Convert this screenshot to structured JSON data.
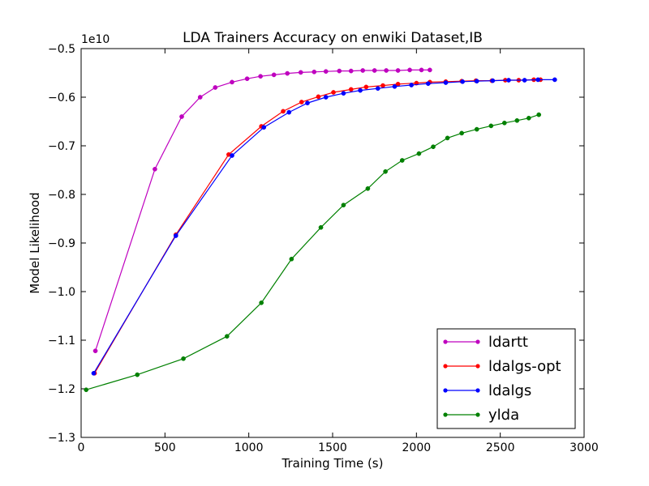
{
  "chart_data": {
    "type": "line",
    "title": "LDA Trainers Accuracy on enwiki Dataset,IB",
    "xlabel": "Training Time (s)",
    "ylabel": "Model Likelihood",
    "offset_label": "1e10",
    "xlim": [
      0,
      3000
    ],
    "ylim": [
      -1.3,
      -0.5
    ],
    "x_ticks": [
      0,
      500,
      1000,
      1500,
      2000,
      2500,
      3000
    ],
    "y_ticks": [
      -1.3,
      -1.2,
      -1.1,
      -1.0,
      -0.9,
      -0.8,
      -0.7,
      -0.6,
      -0.5
    ],
    "x_tick_labels": [
      "0",
      "500",
      "1000",
      "1500",
      "2000",
      "2500",
      "3000"
    ],
    "y_tick_labels": [
      "−1.3",
      "−1.2",
      "−1.1",
      "−1.0",
      "−0.9",
      "−0.8",
      "−0.7",
      "−0.6",
      "−0.5"
    ],
    "grid": false,
    "legend_position": "lower-right",
    "series": [
      {
        "name": "ldartt",
        "color": "#bf00bf",
        "x": [
          85,
          440,
          600,
          710,
          800,
          900,
          990,
          1070,
          1150,
          1230,
          1310,
          1390,
          1460,
          1540,
          1610,
          1680,
          1750,
          1820,
          1890,
          1960,
          2030,
          2080
        ],
        "y": [
          -1.122,
          -0.748,
          -0.64,
          -0.6,
          -0.58,
          -0.569,
          -0.562,
          -0.557,
          -0.554,
          -0.551,
          -0.549,
          -0.548,
          -0.547,
          -0.546,
          -0.546,
          -0.545,
          -0.545,
          -0.545,
          -0.545,
          -0.544,
          -0.544,
          -0.544
        ]
      },
      {
        "name": "ldalgs-opt",
        "color": "#ff0000",
        "x": [
          80,
          565,
          880,
          1075,
          1205,
          1315,
          1415,
          1505,
          1610,
          1700,
          1800,
          1890,
          2000,
          2080,
          2175,
          2270,
          2355,
          2450,
          2530,
          2610,
          2700,
          2740
        ],
        "y": [
          -1.168,
          -0.883,
          -0.718,
          -0.66,
          -0.629,
          -0.61,
          -0.599,
          -0.59,
          -0.584,
          -0.579,
          -0.576,
          -0.573,
          -0.571,
          -0.569,
          -0.568,
          -0.567,
          -0.566,
          -0.566,
          -0.565,
          -0.565,
          -0.564,
          -0.564
        ]
      },
      {
        "name": "ldalgs",
        "color": "#0000ff",
        "x": [
          75,
          565,
          900,
          1090,
          1240,
          1350,
          1460,
          1565,
          1665,
          1770,
          1870,
          1970,
          2070,
          2175,
          2275,
          2360,
          2455,
          2550,
          2645,
          2725,
          2825
        ],
        "y": [
          -1.168,
          -0.885,
          -0.72,
          -0.662,
          -0.631,
          -0.612,
          -0.6,
          -0.592,
          -0.586,
          -0.582,
          -0.578,
          -0.575,
          -0.572,
          -0.57,
          -0.568,
          -0.567,
          -0.566,
          -0.565,
          -0.565,
          -0.564,
          -0.564
        ]
      },
      {
        "name": "ylda",
        "color": "#008000",
        "x": [
          30,
          335,
          610,
          870,
          1075,
          1255,
          1430,
          1565,
          1710,
          1815,
          1915,
          2015,
          2100,
          2185,
          2270,
          2360,
          2445,
          2525,
          2600,
          2670,
          2730
        ],
        "y": [
          -1.202,
          -1.171,
          -1.138,
          -1.092,
          -1.023,
          -0.933,
          -0.868,
          -0.822,
          -0.788,
          -0.753,
          -0.73,
          -0.716,
          -0.702,
          -0.684,
          -0.674,
          -0.666,
          -0.659,
          -0.653,
          -0.648,
          -0.643,
          -0.636
        ]
      }
    ]
  }
}
